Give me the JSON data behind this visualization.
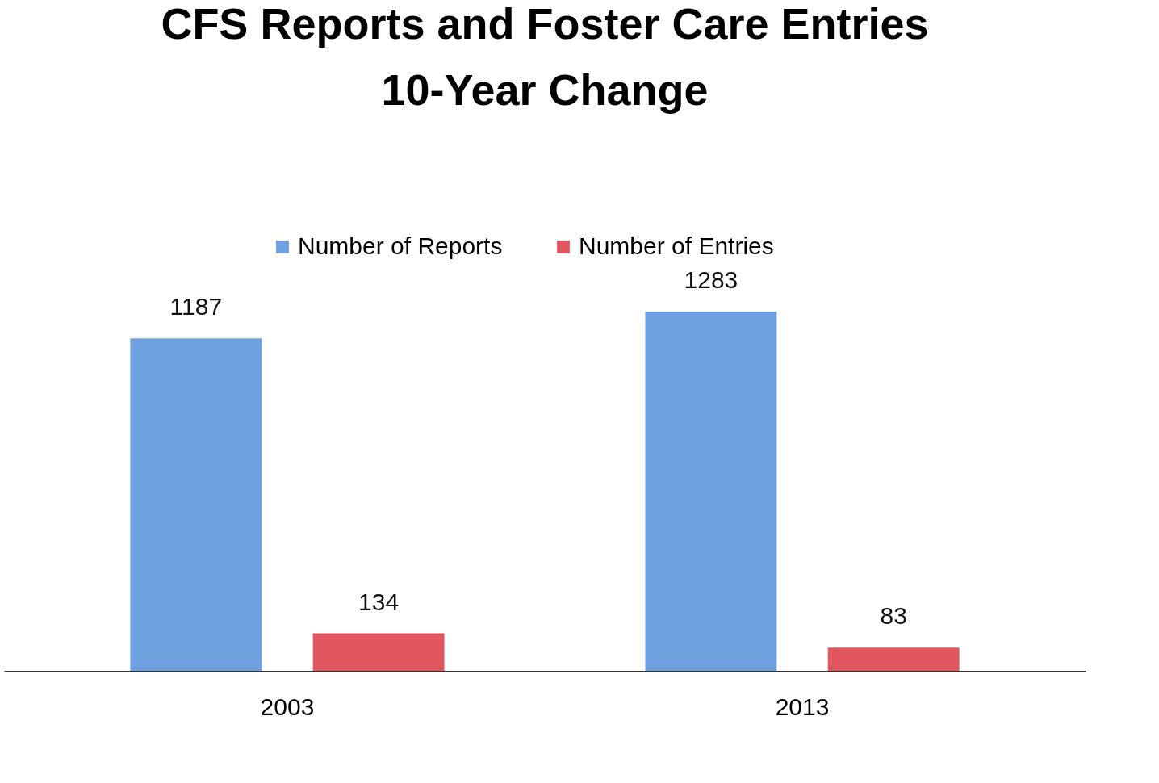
{
  "chart_data": {
    "type": "bar",
    "title": "CFS Reports and Foster Care Entries\n10-Year Change",
    "categories": [
      "2003",
      "2013"
    ],
    "series": [
      {
        "name": "Number of Reports",
        "color": "#6fa0e0",
        "values": [
          1187,
          1283
        ]
      },
      {
        "name": "Number of Entries",
        "color": "#e0575f",
        "values": [
          134,
          83
        ]
      }
    ],
    "data_labels": true,
    "legend": "top",
    "tick_labels": "x"
  }
}
